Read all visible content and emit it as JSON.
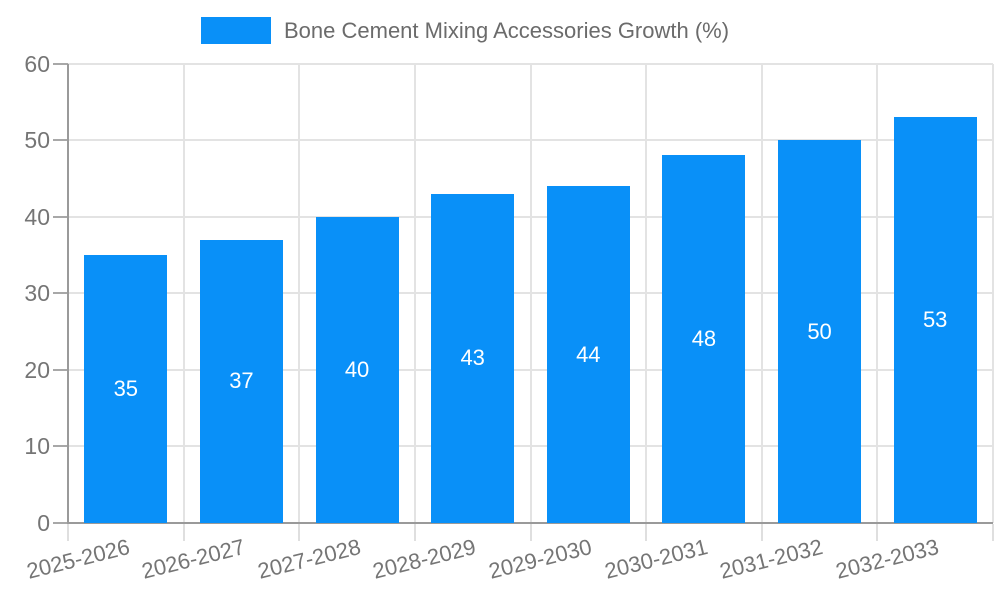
{
  "chart_data": {
    "type": "bar",
    "legend": "Bone Cement Mixing Accessories Growth (%)",
    "categories": [
      "2025-2026",
      "2026-2027",
      "2027-2028",
      "2028-2029",
      "2029-2030",
      "2030-2031",
      "2031-2032",
      "2032-2033"
    ],
    "values": [
      35,
      37,
      40,
      43,
      44,
      48,
      50,
      53
    ],
    "bar_labels": [
      "35",
      "37",
      "40",
      "43",
      "44",
      "48",
      "50",
      "53"
    ],
    "title": "",
    "xlabel": "",
    "ylabel": "",
    "ylim": [
      0,
      60
    ],
    "yticks": [
      0,
      10,
      20,
      30,
      40,
      50,
      60
    ],
    "grid": "both",
    "legend_position": "top-center",
    "value_label_position": "middle-of-bar",
    "colors": {
      "bar": "#0990f8",
      "grid": "#e3e3e3",
      "axis": "#9a9a9a",
      "y_tick": "#a8a8a8",
      "x_tick": "#dfdfdf",
      "tick_label": "#757575",
      "legend_text": "#6b6b6b",
      "value_label": "#ffffff",
      "background": "#ffffff"
    }
  }
}
